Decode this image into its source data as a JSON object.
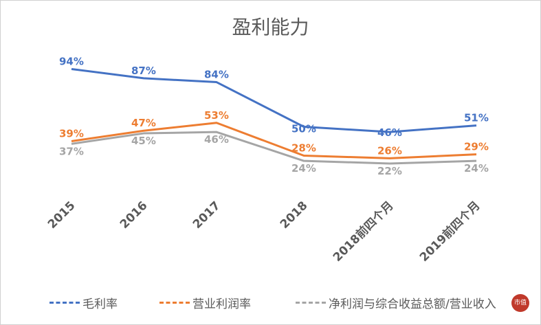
{
  "chart_data": {
    "type": "line",
    "title": "盈利能力",
    "categories": [
      "2015",
      "2016",
      "2017",
      "2018",
      "2018前四个月",
      "2019前四个月"
    ],
    "series": [
      {
        "name": "毛利率",
        "values": [
          94,
          87,
          84,
          50,
          46,
          51
        ],
        "color": "#4472C4"
      },
      {
        "name": "营业利润率",
        "values": [
          39,
          47,
          53,
          28,
          26,
          29
        ],
        "color": "#ED7D31"
      },
      {
        "name": "净利润与综合收益总额/营业收入",
        "values": [
          37,
          45,
          46,
          24,
          22,
          24
        ],
        "color": "#A5A5A5"
      }
    ],
    "value_format": "percent",
    "data_labels": true,
    "grid": false,
    "legend_position": "bottom"
  },
  "logo": {
    "text": "市值风云",
    "color": "#C0392B"
  }
}
